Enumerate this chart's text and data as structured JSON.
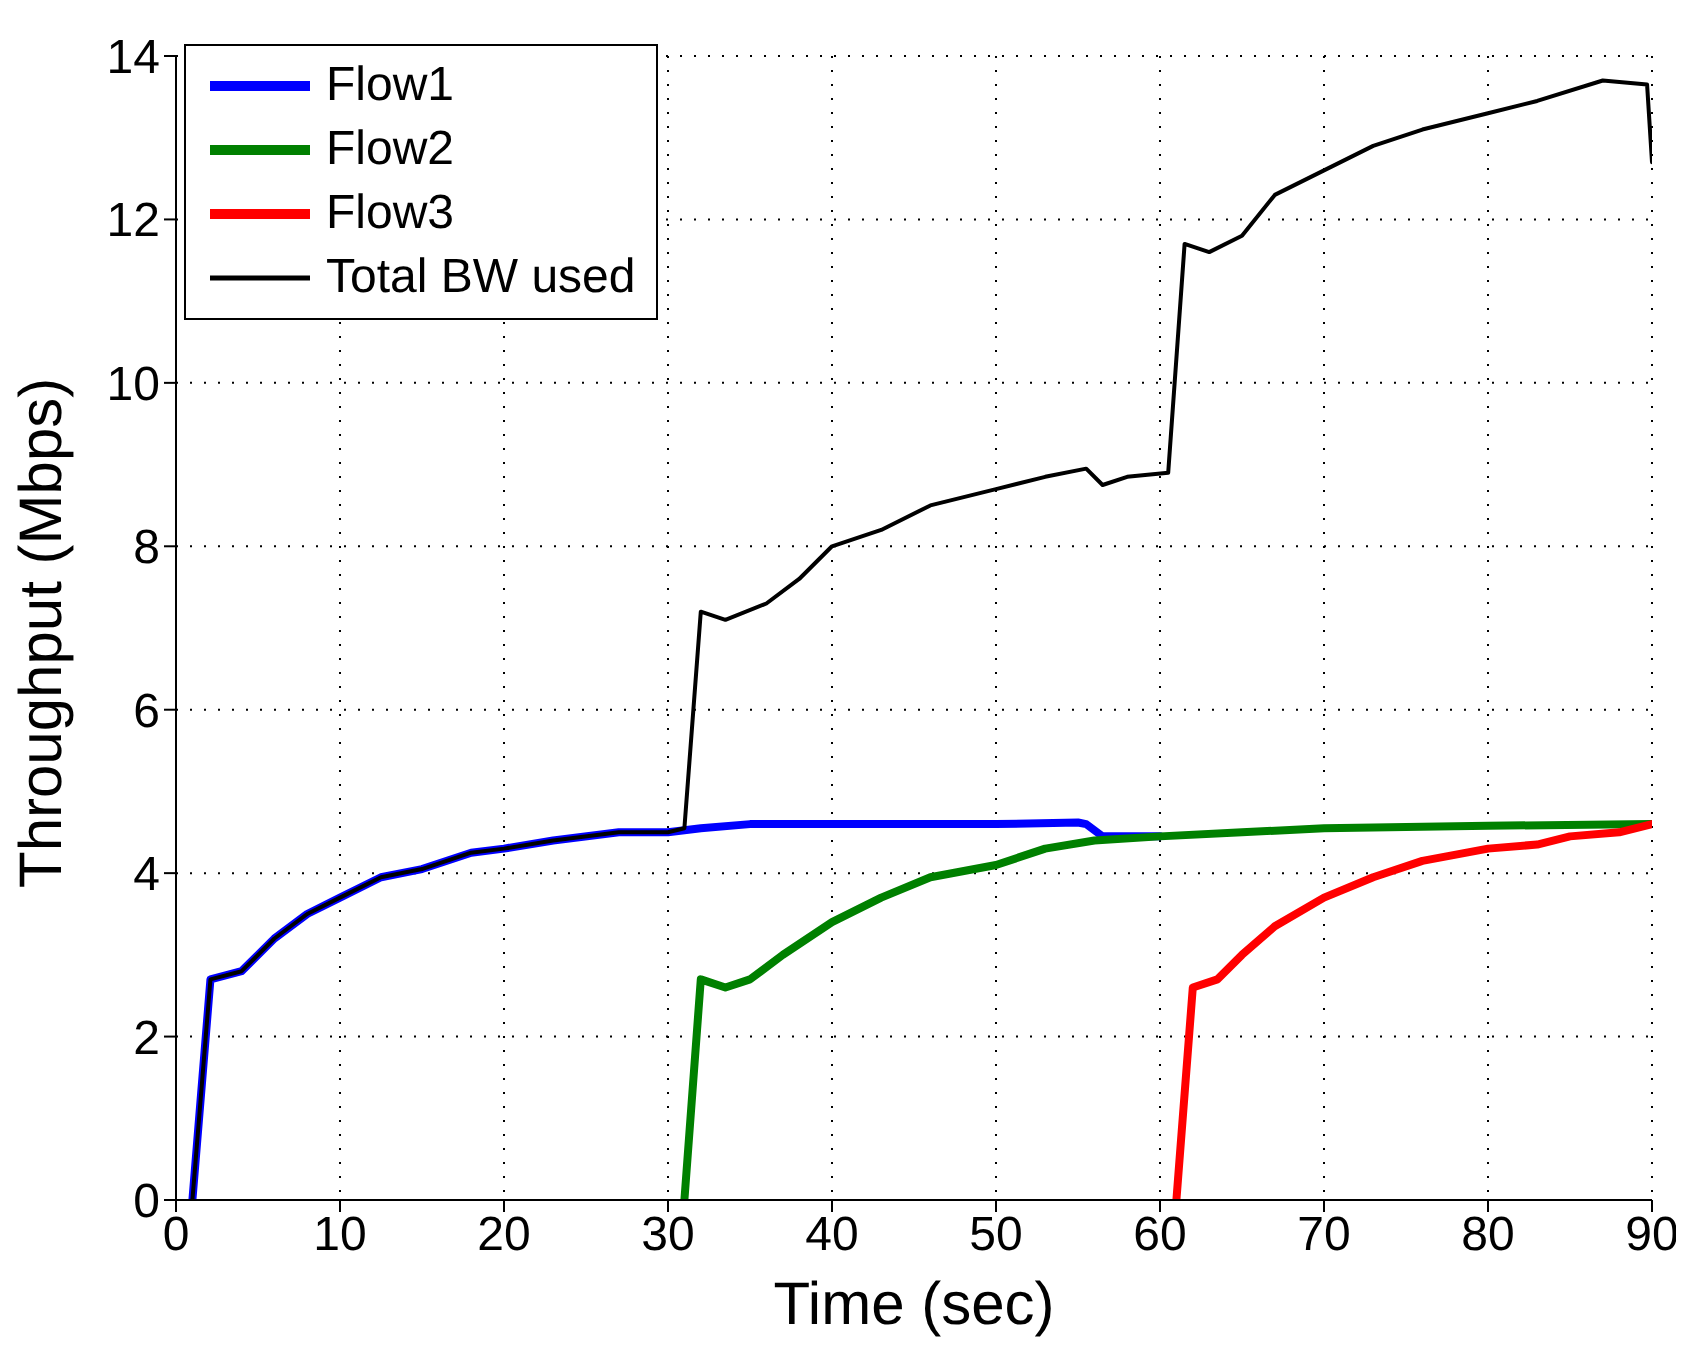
{
  "chart_data": {
    "type": "line",
    "xlabel": "Time (sec)",
    "ylabel": "Throughput (Mbps)",
    "xlim": [
      0,
      90
    ],
    "ylim": [
      0,
      14
    ],
    "xticks": [
      0,
      10,
      20,
      30,
      40,
      50,
      60,
      70,
      80,
      90
    ],
    "yticks": [
      0,
      2,
      4,
      6,
      8,
      10,
      12,
      14
    ],
    "grid": true,
    "legend": "top left",
    "line_style": "solid",
    "marker": "none",
    "series": [
      {
        "name": "Flow1",
        "color": "#0000ff",
        "x": [
          1.0,
          2.1,
          4,
          6,
          8,
          10,
          12.5,
          15,
          18,
          20,
          23,
          27,
          30,
          32,
          35,
          40,
          45,
          50,
          55,
          55.5,
          56.5,
          60
        ],
        "values": [
          0,
          2.7,
          2.8,
          3.2,
          3.5,
          3.7,
          3.95,
          4.05,
          4.25,
          4.3,
          4.4,
          4.5,
          4.5,
          4.55,
          4.6,
          4.6,
          4.6,
          4.6,
          4.62,
          4.6,
          4.45,
          4.45
        ]
      },
      {
        "name": "Flow2",
        "color": "#008000",
        "x": [
          31,
          32,
          33.5,
          35,
          37,
          40,
          43,
          46,
          50,
          53,
          56,
          60,
          65,
          70,
          80,
          90
        ],
        "values": [
          0,
          2.7,
          2.6,
          2.7,
          3.0,
          3.4,
          3.7,
          3.95,
          4.1,
          4.3,
          4.4,
          4.45,
          4.5,
          4.55,
          4.58,
          4.6
        ]
      },
      {
        "name": "Flow3",
        "color": "#ff0000",
        "x": [
          61,
          62,
          63.5,
          65,
          67,
          70,
          73,
          76,
          80,
          83,
          85,
          88,
          90
        ],
        "values": [
          0,
          2.6,
          2.7,
          3.0,
          3.35,
          3.7,
          3.95,
          4.15,
          4.3,
          4.35,
          4.45,
          4.5,
          4.6
        ]
      },
      {
        "name": "Total BW used",
        "color": "#000000",
        "x": [
          1.0,
          2.1,
          4,
          6,
          8,
          10,
          12.5,
          15,
          18,
          20,
          23,
          27,
          30,
          31,
          32,
          33.5,
          36,
          38,
          40,
          43,
          46,
          50,
          53,
          55.5,
          56.5,
          58,
          60.5,
          61.5,
          63,
          65,
          67,
          70,
          73,
          76,
          80,
          83,
          87,
          89.7,
          90
        ],
        "values": [
          0,
          2.7,
          2.8,
          3.2,
          3.5,
          3.7,
          3.95,
          4.05,
          4.25,
          4.3,
          4.4,
          4.5,
          4.5,
          4.55,
          7.2,
          7.1,
          7.3,
          7.6,
          8.0,
          8.2,
          8.5,
          8.7,
          8.85,
          8.95,
          8.75,
          8.85,
          8.9,
          11.7,
          11.6,
          11.8,
          12.3,
          12.6,
          12.9,
          13.1,
          13.3,
          13.45,
          13.7,
          13.65,
          12.7
        ]
      }
    ]
  }
}
